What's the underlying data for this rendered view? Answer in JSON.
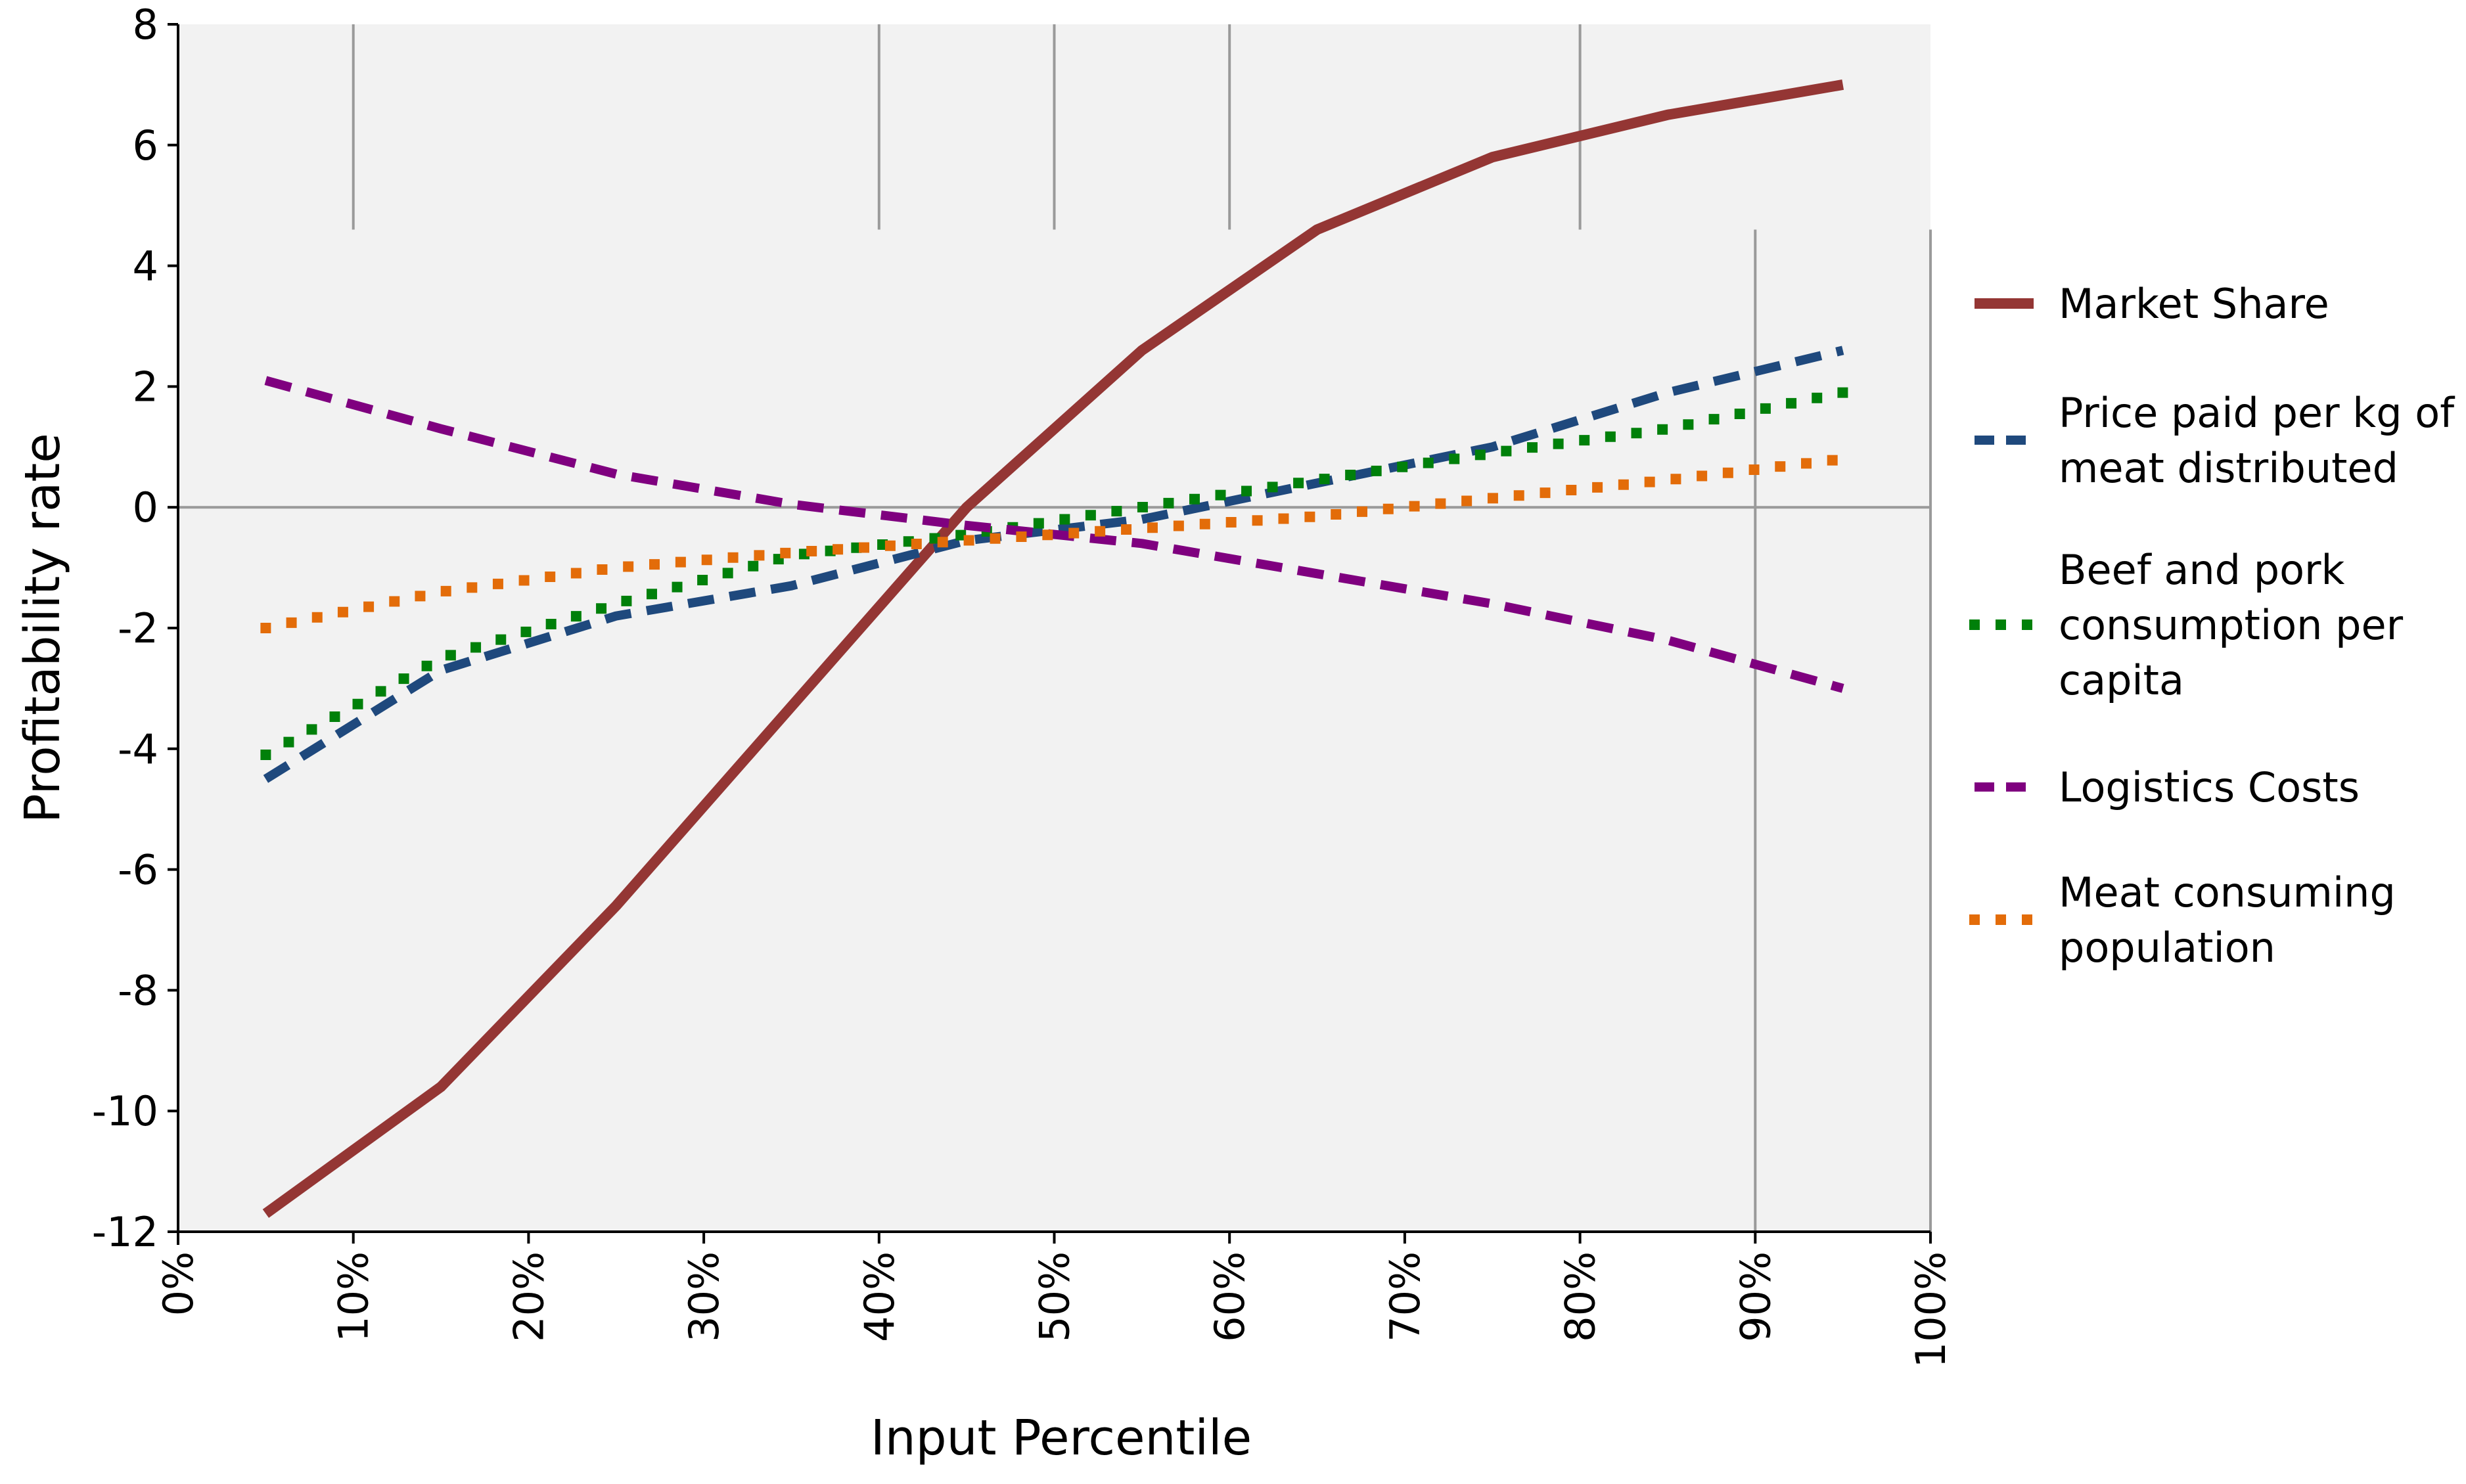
{
  "chart_data": {
    "type": "line",
    "title": "",
    "xlabel": "Input Percentile",
    "ylabel": "Profitability rate",
    "xlim": [
      0,
      100
    ],
    "ylim": [
      -12,
      8
    ],
    "x_ticks": [
      {
        "value": 0,
        "label": "0%"
      },
      {
        "value": 10,
        "label": "10%"
      },
      {
        "value": 20,
        "label": "20%"
      },
      {
        "value": 30,
        "label": "30%"
      },
      {
        "value": 40,
        "label": "40%"
      },
      {
        "value": 50,
        "label": "50%"
      },
      {
        "value": 60,
        "label": "60%"
      },
      {
        "value": 70,
        "label": "70%"
      },
      {
        "value": 80,
        "label": "80%"
      },
      {
        "value": 90,
        "label": "90%"
      },
      {
        "value": 100,
        "label": "100%"
      }
    ],
    "y_ticks": [
      {
        "value": 8,
        "label": "8"
      },
      {
        "value": 6,
        "label": "6"
      },
      {
        "value": 4,
        "label": "4"
      },
      {
        "value": 2,
        "label": "2"
      },
      {
        "value": 0,
        "label": "0"
      },
      {
        "value": -2,
        "label": "-2"
      },
      {
        "value": -4,
        "label": "-4"
      },
      {
        "value": -6,
        "label": "-6"
      },
      {
        "value": -8,
        "label": "-8"
      },
      {
        "value": -10,
        "label": "-10"
      },
      {
        "value": -12,
        "label": "-12"
      }
    ],
    "x": [
      5,
      15,
      25,
      35,
      45,
      55,
      65,
      75,
      85,
      95
    ],
    "series": [
      {
        "name": "Market Share",
        "style": "solid",
        "color": "#943634",
        "values": [
          -11.7,
          -9.6,
          -6.6,
          -3.3,
          0.0,
          2.6,
          4.6,
          5.8,
          6.5,
          7.0
        ]
      },
      {
        "name": "Price paid per kg of meat distributed",
        "style": "dashed",
        "color": "#1F497D",
        "values": [
          -4.5,
          -2.7,
          -1.8,
          -1.3,
          -0.55,
          -0.2,
          0.4,
          1.0,
          1.9,
          2.6
        ]
      },
      {
        "name": "Beef and pork consumption per capita",
        "style": "dotted",
        "color": "#00800A",
        "values": [
          -4.1,
          -2.5,
          -1.6,
          -0.8,
          -0.45,
          0.0,
          0.45,
          0.9,
          1.3,
          1.9
        ]
      },
      {
        "name": "Logistics Costs",
        "style": "dashed",
        "color": "#7F007F",
        "values": [
          2.1,
          1.3,
          0.55,
          0.05,
          -0.3,
          -0.6,
          -1.1,
          -1.6,
          -2.2,
          -3.0
        ]
      },
      {
        "name": "Meat consuming population",
        "style": "dotted",
        "color": "#E36C09",
        "values": [
          -2.0,
          -1.4,
          -1.0,
          -0.75,
          -0.55,
          -0.35,
          -0.15,
          0.15,
          0.45,
          0.8
        ]
      }
    ],
    "legend": [
      {
        "lines": [
          "Market Share"
        ]
      },
      {
        "lines": [
          "Price paid per kg of",
          "meat distributed"
        ]
      },
      {
        "lines": [
          "Beef and pork",
          "consumption per",
          "capita"
        ]
      },
      {
        "lines": [
          "Logistics Costs"
        ]
      },
      {
        "lines": [
          "Meat consuming",
          "population"
        ]
      }
    ],
    "legend_position": "right",
    "vertical_gridlines": [
      10,
      40,
      50,
      60,
      80,
      90
    ],
    "colors": {
      "plot_background": "#F2F2F2",
      "gridline": "#9A9A9A",
      "axis": "#000000"
    }
  }
}
